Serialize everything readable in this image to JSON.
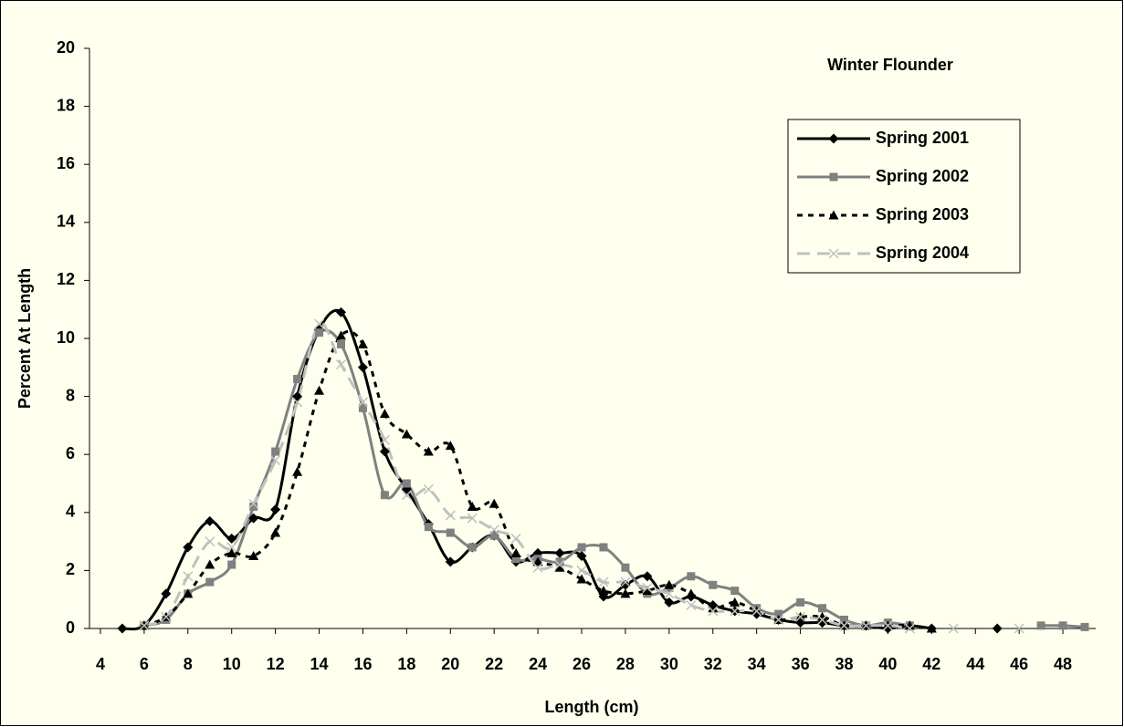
{
  "chart_data": {
    "type": "line",
    "annotation": "Winter Flounder",
    "xlabel": "Length (cm)",
    "ylabel": "Percent At Length",
    "x": [
      5,
      6,
      7,
      8,
      9,
      10,
      11,
      12,
      13,
      14,
      15,
      16,
      17,
      18,
      19,
      20,
      21,
      22,
      23,
      24,
      25,
      26,
      27,
      28,
      29,
      30,
      31,
      32,
      33,
      34,
      35,
      36,
      37,
      38,
      39,
      40,
      41,
      42,
      43,
      44,
      45,
      46,
      47,
      48,
      49
    ],
    "xlim": [
      3.5,
      49.5
    ],
    "xticks": [
      4,
      6,
      8,
      10,
      12,
      14,
      16,
      18,
      20,
      22,
      24,
      26,
      28,
      30,
      32,
      34,
      36,
      38,
      40,
      42,
      44,
      46,
      48
    ],
    "ylim": [
      0,
      20
    ],
    "yticks": [
      0,
      2,
      4,
      6,
      8,
      10,
      12,
      14,
      16,
      18,
      20
    ],
    "smooth": true,
    "legend": "upper right",
    "series": [
      {
        "name": "Spring 2001",
        "color": "#000000",
        "dash": "solid",
        "marker": "diamond",
        "values": [
          0,
          0.1,
          1.2,
          2.8,
          3.7,
          3.1,
          3.8,
          4.1,
          8.0,
          10.3,
          10.9,
          9.0,
          6.1,
          4.8,
          3.6,
          2.3,
          2.8,
          3.2,
          2.3,
          2.6,
          2.6,
          2.5,
          1.1,
          1.5,
          1.8,
          0.9,
          1.1,
          0.8,
          0.6,
          0.5,
          0.3,
          0.2,
          0.2,
          0.1,
          0.1,
          0.0,
          0.1,
          0.0,
          null,
          null,
          0,
          null,
          null,
          null,
          null
        ]
      },
      {
        "name": "Spring 2002",
        "color": "#808080",
        "dash": "solid",
        "marker": "square",
        "values": [
          null,
          0.1,
          0.3,
          1.2,
          1.6,
          2.2,
          4.2,
          6.1,
          8.6,
          10.2,
          9.8,
          7.6,
          4.6,
          5.0,
          3.5,
          3.3,
          2.8,
          3.2,
          2.4,
          2.4,
          2.3,
          2.8,
          2.8,
          2.1,
          1.2,
          1.4,
          1.8,
          1.5,
          1.3,
          0.7,
          0.5,
          0.9,
          0.7,
          0.3,
          0.1,
          0.2,
          0.1,
          null,
          null,
          null,
          null,
          null,
          0.1,
          0.1,
          0.05
        ]
      },
      {
        "name": "Spring 2003",
        "color": "#000000",
        "dash": "dashed",
        "marker": "triangle",
        "values": [
          null,
          0.1,
          0.4,
          1.2,
          2.2,
          2.6,
          2.5,
          3.3,
          5.4,
          8.2,
          10.1,
          9.8,
          7.4,
          6.7,
          6.1,
          6.3,
          4.2,
          4.3,
          2.6,
          2.3,
          2.1,
          1.7,
          1.3,
          1.2,
          1.3,
          1.5,
          1.2,
          0.7,
          0.9,
          0.6,
          0.3,
          0.4,
          0.4,
          0.1,
          0.1,
          0.1,
          0.1,
          0.0,
          null,
          null,
          null,
          null,
          null,
          null,
          null
        ]
      },
      {
        "name": "Spring 2004",
        "color": "#c0c0c0",
        "dash": "longdash",
        "marker": "x",
        "values": [
          null,
          0.1,
          0.4,
          1.8,
          3.0,
          2.8,
          4.3,
          5.8,
          7.8,
          10.5,
          9.1,
          7.8,
          6.5,
          4.6,
          4.8,
          3.9,
          3.8,
          3.4,
          3.1,
          2.1,
          2.2,
          2.0,
          1.6,
          1.6,
          1.4,
          1.2,
          0.8,
          0.6,
          0.6,
          0.6,
          0.3,
          0.4,
          0.3,
          0.1,
          0.1,
          0.1,
          0.0,
          null,
          0,
          null,
          null,
          0,
          null,
          null,
          null
        ]
      }
    ]
  }
}
